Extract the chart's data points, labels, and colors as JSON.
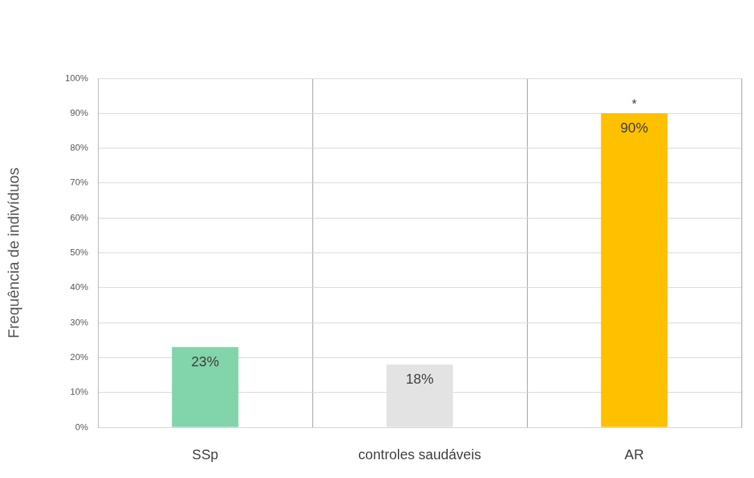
{
  "chart_data": {
    "type": "bar",
    "ylabel": "Frequência de indivíduos",
    "categories": [
      "SSp",
      "controles saudáveis",
      "AR"
    ],
    "values": [
      23,
      18,
      90
    ],
    "colors": [
      "#82d4aa",
      "#e3e3e3",
      "#ffc000"
    ],
    "value_labels": [
      "23%",
      "18%",
      "90%"
    ],
    "ylim": [
      0,
      100
    ],
    "yticks": [
      {
        "value": 0,
        "label": "0%"
      },
      {
        "value": 10,
        "label": "10%"
      },
      {
        "value": 20,
        "label": "20%"
      },
      {
        "value": 30,
        "label": "30%"
      },
      {
        "value": 40,
        "label": "40%"
      },
      {
        "value": 50,
        "label": "50%"
      },
      {
        "value": 60,
        "label": "60%"
      },
      {
        "value": 70,
        "label": "70%"
      },
      {
        "value": 80,
        "label": "80%"
      },
      {
        "value": 90,
        "label": "90%"
      },
      {
        "value": 100,
        "label": "100%"
      }
    ],
    "annotations": [
      {
        "text": "*",
        "x": "AR",
        "y": 90
      }
    ],
    "grid": true,
    "legend": false
  }
}
